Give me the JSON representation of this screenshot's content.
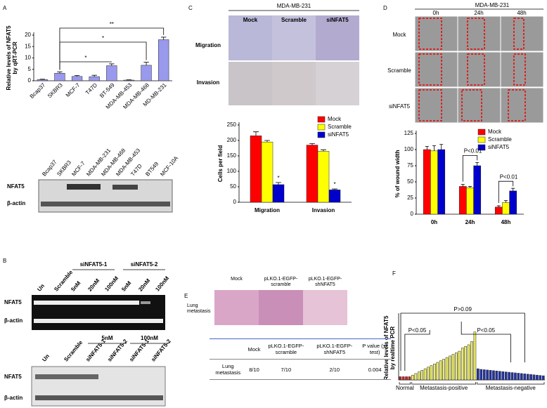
{
  "panel_labels": [
    "A",
    "B",
    "C",
    "D",
    "E",
    "F"
  ],
  "chart_data": [
    {
      "type": "bar",
      "ylabel": [
        "Relative levels of NFAT5",
        "by qRT-PCR"
      ],
      "categories": [
        "Bcap37",
        "SKBR3",
        "MCF-7",
        "T47D",
        "BT-549",
        "MDA-MB-453",
        "MDA-MB-468",
        "MD-MB-231"
      ],
      "values": [
        0.5,
        3.3,
        1.9,
        1.8,
        6.6,
        0.3,
        6.8,
        18.0
      ],
      "errors": [
        0.2,
        0.6,
        0.4,
        0.6,
        0.8,
        0.1,
        1.3,
        1.1
      ],
      "color": "#9999ee",
      "ylim": [
        0,
        20
      ],
      "yticks": [
        0,
        5,
        10,
        15,
        20
      ],
      "annotations": [
        "*",
        "*",
        "**"
      ]
    },
    {
      "type": "bar",
      "ylabel": [
        "Cells per field"
      ],
      "categories": [
        "Migration",
        "Invasion"
      ],
      "series": [
        {
          "name": "Mock",
          "color": "#ff0000",
          "values": [
            215,
            185
          ],
          "errors": [
            13,
            5
          ]
        },
        {
          "name": "Scramble",
          "color": "#ffff00",
          "values": [
            195,
            165
          ],
          "errors": [
            5,
            5
          ]
        },
        {
          "name": "siNFAT5",
          "color": "#0000cc",
          "values": [
            57,
            40
          ],
          "errors": [
            7,
            3
          ]
        }
      ],
      "ylim": [
        0,
        250
      ],
      "yticks": [
        0,
        50,
        100,
        150,
        200,
        250
      ],
      "annotations": [
        "*",
        "*"
      ]
    },
    {
      "type": "bar",
      "ylabel": [
        "% of wound width"
      ],
      "categories": [
        "0h",
        "24h",
        "48h"
      ],
      "series": [
        {
          "name": "Mock",
          "color": "#ff0000",
          "values": [
            100,
            43,
            11
          ],
          "errors": [
            5,
            3,
            2
          ]
        },
        {
          "name": "Scramble",
          "color": "#ffff00",
          "values": [
            98,
            41,
            18
          ],
          "errors": [
            8,
            2,
            3
          ]
        },
        {
          "name": "siNFAT5",
          "color": "#0000cc",
          "values": [
            100,
            75,
            36
          ],
          "errors": [
            8,
            5,
            4
          ]
        }
      ],
      "ylim": [
        0,
        125
      ],
      "yticks": [
        0,
        25,
        50,
        75,
        100,
        125
      ],
      "annotations": [
        "P<0.01",
        "P<0.01"
      ]
    },
    {
      "type": "bar",
      "ylabel": [
        "Relative levels of NFAT5",
        "by realtime PCR"
      ],
      "series": [
        {
          "name": "Normal",
          "color": "#cc2222",
          "values": [
            1,
            1,
            1,
            1
          ]
        },
        {
          "name": "Metastasis-positive",
          "color": "#eeee66",
          "values": [
            1.5,
            2,
            2.5,
            3,
            3.5,
            4,
            4.5,
            5,
            5.5,
            6,
            6.5,
            7,
            7.5,
            8,
            8.5,
            9,
            10,
            10.5,
            11,
            12,
            15
          ]
        },
        {
          "name": "Metastasis-negative",
          "color": "#2233aa",
          "values": [
            3.5,
            3.3,
            3.2,
            3.1,
            3,
            2.9,
            2.8,
            2.7,
            2.6,
            2.5,
            2.4,
            2.3,
            2.2,
            2.1,
            2,
            1.9,
            1.8,
            1.7,
            1.6,
            1.5,
            1.4,
            1.3
          ]
        }
      ],
      "ylim": [
        0,
        20
      ],
      "annotations": [
        "P<0.05",
        "P<0.05",
        "P>0.09"
      ]
    }
  ],
  "blot_a": {
    "lanes": [
      "Bcap37",
      "SKBR3",
      "MCF-7",
      "MDA-MB-231",
      "MDA-MB-468",
      "MDA-MB-453",
      "T47D",
      "BT549",
      "MCF-10A"
    ],
    "rows": [
      "NFAT5",
      "β-actin"
    ]
  },
  "panel_b": {
    "gel1": {
      "lanes": [
        "Un",
        "Scramble",
        "5nM",
        "20nM",
        "100nM",
        "5nM",
        "20nM",
        "100nM"
      ],
      "groups": [
        "siNFAT5-1",
        "siNFAT5-2"
      ],
      "rows": [
        "NFAT5",
        "β-actin"
      ]
    },
    "gel2": {
      "lanes": [
        "Un",
        "Scramble",
        "siNFAT5-1",
        "siNFAT5-2",
        "siNFAT5-1",
        "siNFAT5-2"
      ],
      "groups": [
        "5nM",
        "100nM"
      ],
      "rows": [
        "NFAT5",
        "β-actin"
      ]
    }
  },
  "panel_c_images": {
    "title": "MDA-MB-231",
    "columns": [
      "Mock",
      "Scramble",
      "siNFAT5"
    ],
    "rows": [
      "Migration",
      "Invasion"
    ]
  },
  "panel_d_images": {
    "title": "MDA-MB-231",
    "columns": [
      "0h",
      "24h",
      "48h"
    ],
    "rows": [
      "Mock",
      "Scramble",
      "siNFAT5"
    ]
  },
  "panel_e": {
    "images": {
      "columns": [
        "Mock",
        "pLKO.1-EGFP-scramble",
        "pLKO.1-EGFP-shNFAT5"
      ],
      "row": "Lung metastasis"
    },
    "table": {
      "header": [
        "Mock",
        "pLKO.1-EGFP-scramble",
        "pLKO.1-EGFP-shNFAT5",
        "P value (χ² test)"
      ],
      "rows": [
        [
          "Lung metastasis",
          "8/10",
          "7/10",
          "2/10",
          "0.004"
        ]
      ]
    }
  }
}
